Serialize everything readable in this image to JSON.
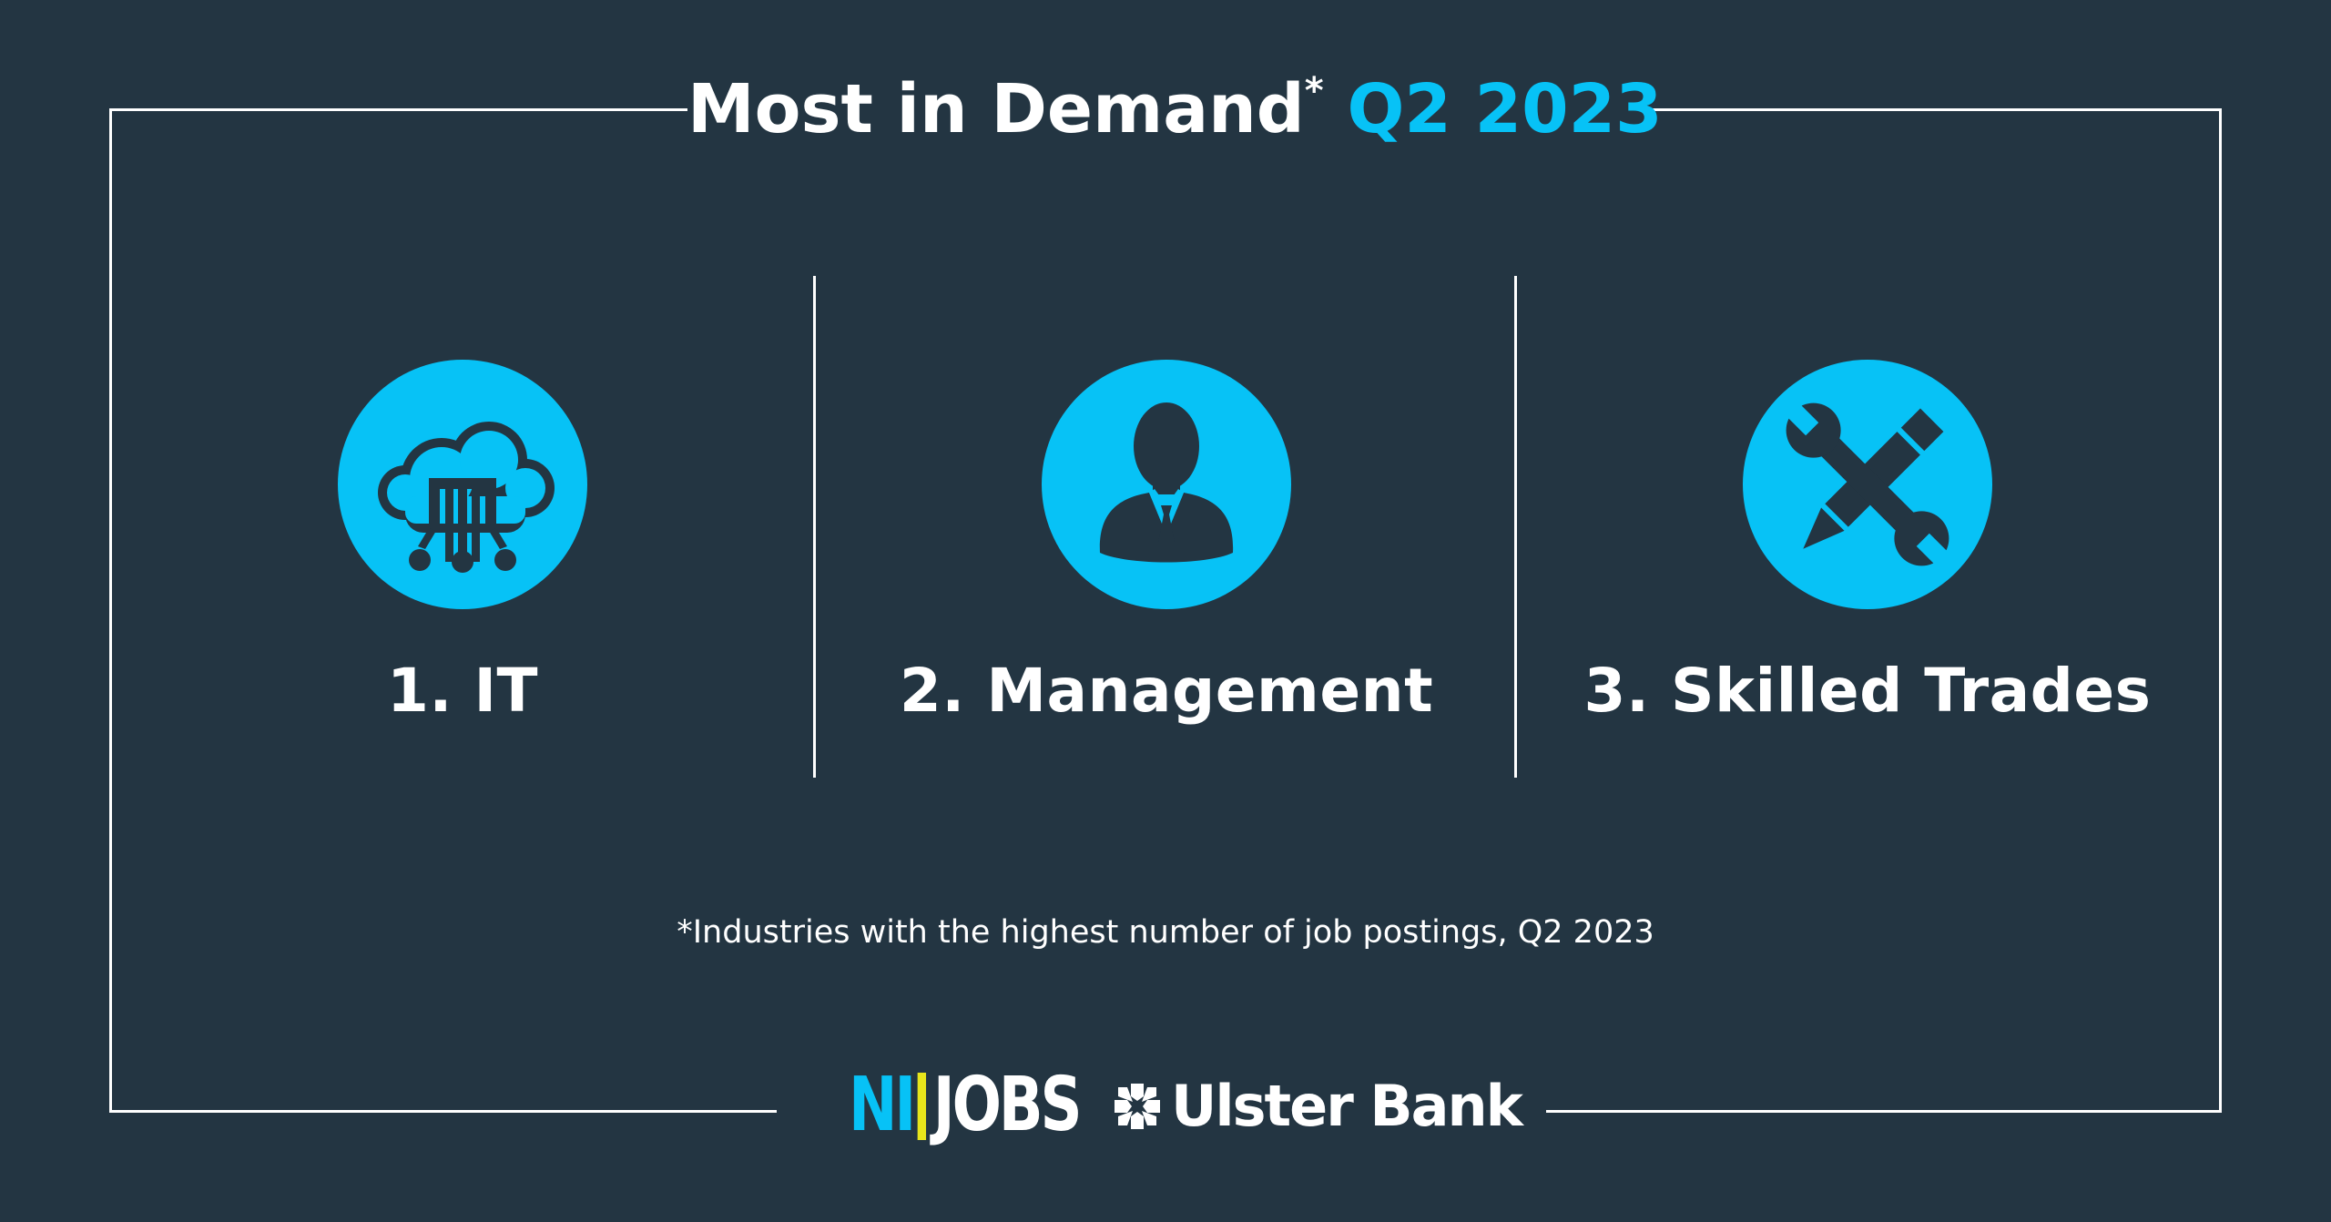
{
  "header": {
    "title_main": "Most in Demand",
    "title_mark": "*",
    "title_period": "Q2 2023"
  },
  "categories": [
    {
      "label": "1. IT",
      "icon": "cloud-network-icon"
    },
    {
      "label": "2. Management",
      "icon": "business-person-icon"
    },
    {
      "label": "3. Skilled Trades",
      "icon": "wrench-pencil-icon"
    }
  ],
  "footnote": "*Industries with the highest number of job postings, Q2 2023",
  "logos": {
    "nijobs_ni": "NI",
    "nijobs_jobs": "JOBS",
    "ulster_bank": "Ulster Bank"
  },
  "colors": {
    "background": "#233542",
    "accent": "#07c2f6",
    "text": "#ffffff",
    "nijobs_bar": "#e8e51b"
  }
}
